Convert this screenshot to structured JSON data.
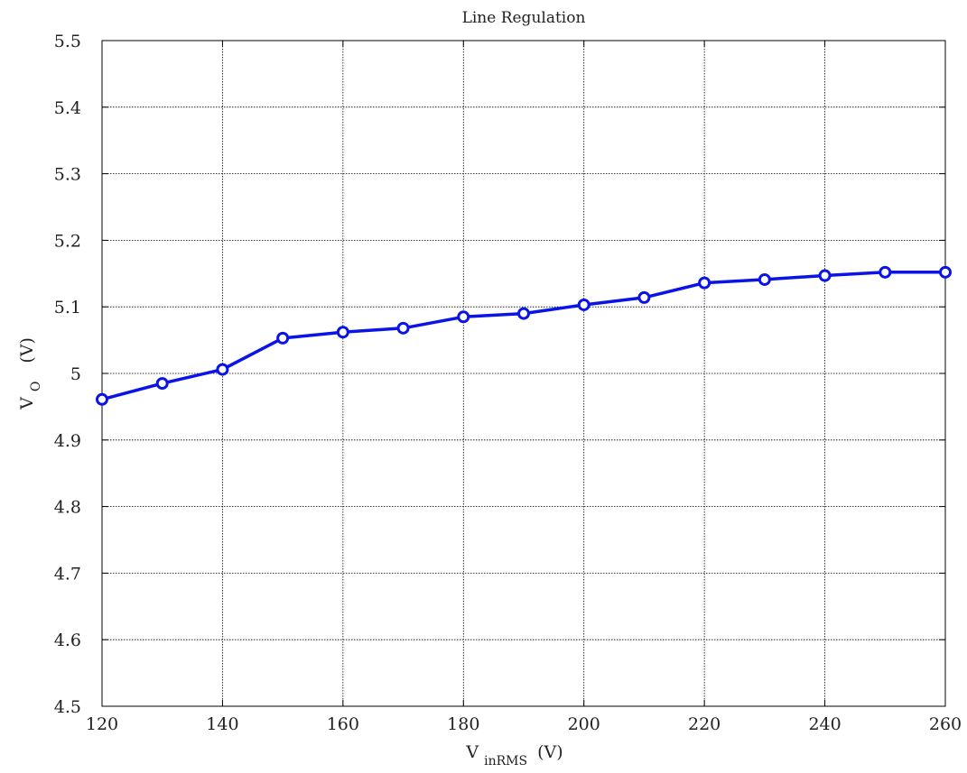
{
  "chart_data": {
    "type": "line",
    "title": "Line Regulation",
    "xlabel": {
      "main": "V",
      "sub": "inRMS",
      "unit": "(V)"
    },
    "ylabel": {
      "main": "V",
      "sub": "O",
      "unit": "(V)"
    },
    "xlim": [
      120,
      260
    ],
    "ylim": [
      4.5,
      5.5
    ],
    "xticks": [
      120,
      140,
      160,
      180,
      200,
      220,
      240,
      260
    ],
    "yticks": [
      4.5,
      4.6,
      4.7,
      4.8,
      4.9,
      5,
      5.1,
      5.2,
      5.3,
      5.4,
      5.5
    ],
    "ytick_labels": [
      "4.5",
      "4.6",
      "4.7",
      "4.8",
      "4.9",
      "5",
      "5.1",
      "5.2",
      "5.3",
      "5.4",
      "5.5"
    ],
    "grid": true,
    "series": [
      {
        "color": "#0a14e6",
        "marker": "circle",
        "x": [
          120,
          130,
          140,
          150,
          160,
          170,
          180,
          190,
          200,
          210,
          220,
          230,
          240,
          250,
          260
        ],
        "y": [
          4.961,
          4.985,
          5.006,
          5.053,
          5.062,
          5.068,
          5.085,
          5.09,
          5.103,
          5.114,
          5.136,
          5.141,
          5.147,
          5.152,
          5.152
        ]
      }
    ]
  }
}
